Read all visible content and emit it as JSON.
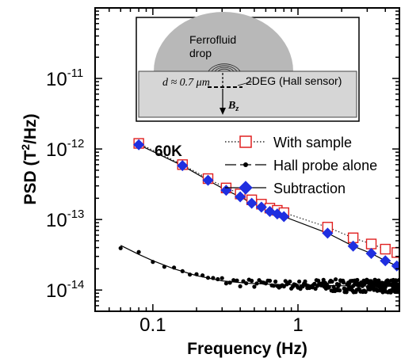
{
  "chart_data": {
    "type": "scatter",
    "xlabel": "Frequency (Hz)",
    "ylabel_main": "PSD (T",
    "ylabel_sup": "2",
    "ylabel_tail": "/Hz)",
    "x_scale": "log",
    "y_scale": "log",
    "xlim": [
      0.04,
      5
    ],
    "ylim": [
      5e-15,
      1e-10
    ],
    "x_ticks": [
      {
        "value": 0.1,
        "label": "0.1"
      },
      {
        "value": 1,
        "label": "1"
      }
    ],
    "y_ticks": [
      {
        "value": 1e-14,
        "base": "10",
        "exp": "-14"
      },
      {
        "value": 1e-13,
        "base": "10",
        "exp": "-13"
      },
      {
        "value": 1e-12,
        "base": "10",
        "exp": "-12"
      },
      {
        "value": 1e-11,
        "base": "10",
        "exp": "-11"
      }
    ],
    "temperature_label": "60K",
    "legend_position": "right-middle",
    "series": [
      {
        "name": "With sample",
        "marker": "open-square",
        "color": "#e02020",
        "line": "dotted",
        "x": [
          0.08,
          0.16,
          0.24,
          0.32,
          0.4,
          0.48,
          0.56,
          0.64,
          0.72,
          0.8,
          1.6,
          2.4,
          3.2,
          4.0,
          4.8
        ],
        "y": [
          1.2e-12,
          6e-13,
          3.8e-13,
          2.8e-13,
          2.3e-13,
          1.9e-13,
          1.65e-13,
          1.45e-13,
          1.35e-13,
          1.25e-13,
          7.8e-14,
          5.5e-14,
          4.5e-14,
          3.8e-14,
          3.4e-14
        ]
      },
      {
        "name": "Hall probe alone",
        "marker": "filled-circle",
        "color": "#000000",
        "line": "dashed",
        "fit": {
          "x": [
            0.06,
            0.08,
            0.1,
            0.14,
            0.2,
            0.3,
            0.45,
            0.7,
            1.0,
            2.0,
            5.0
          ],
          "y": [
            4.3e-14,
            3.2e-14,
            2.6e-14,
            2e-14,
            1.6e-14,
            1.35e-14,
            1.25e-14,
            1.2e-14,
            1.18e-14,
            1.15e-14,
            1.13e-14
          ]
        }
      },
      {
        "name": "Subtraction",
        "marker": "filled-diamond",
        "color": "#1f2fe0",
        "line": "solid",
        "x": [
          0.08,
          0.16,
          0.24,
          0.32,
          0.4,
          0.48,
          0.56,
          0.64,
          0.72,
          0.8,
          1.6,
          2.4,
          3.2,
          4.0,
          4.8
        ],
        "y": [
          1.15e-12,
          5.8e-13,
          3.6e-13,
          2.6e-13,
          2.1e-13,
          1.7e-13,
          1.5e-13,
          1.3e-13,
          1.2e-13,
          1.1e-13,
          6.4e-14,
          4.2e-14,
          3.3e-14,
          2.6e-14,
          2.2e-14
        ]
      }
    ]
  },
  "inset": {
    "drop_label_line1": "Ferrofluid",
    "drop_label_line2": "drop",
    "distance_label": "d ≈ 0.7 μm",
    "sensor_label": "2DEG (Hall sensor)",
    "field_label": "B",
    "field_sub": "z",
    "drop_color": "#b8b8b8",
    "substrate_color": "#d6d6d6"
  }
}
